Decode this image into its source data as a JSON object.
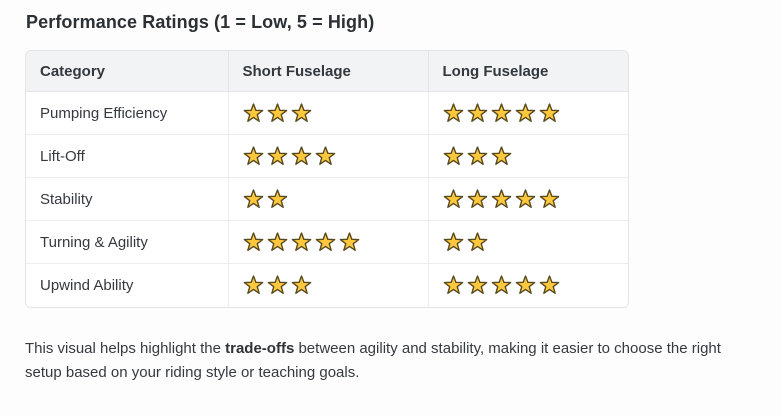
{
  "title": "Performance Ratings (1 = Low, 5 = High)",
  "table": {
    "headers": [
      "Category",
      "Short Fuselage",
      "Long Fuselage"
    ],
    "max_rating": 5,
    "rows": [
      {
        "category": "Pumping Efficiency",
        "short": 3,
        "long": 5
      },
      {
        "category": "Lift-Off",
        "short": 4,
        "long": 3
      },
      {
        "category": "Stability",
        "short": 2,
        "long": 5
      },
      {
        "category": "Turning & Agility",
        "short": 5,
        "long": 2
      },
      {
        "category": "Upwind Ability",
        "short": 3,
        "long": 5
      }
    ]
  },
  "footer": {
    "text_before": "This visual helps highlight the ",
    "bold_text": "trade-offs",
    "text_after": " between agility and stability, making it easier to choose the right setup based on your riding style or teaching goals."
  },
  "icons": {
    "star": "star-icon"
  },
  "colors": {
    "star_fill": "#FFC83D",
    "star_outline": "#574a1e",
    "header_bg": "#f1f3f5",
    "row_bg": "#ffffff",
    "table_border": "#e2e5e8",
    "inner_border": "#ecedef",
    "text": "#343a40",
    "title_text": "#2b3035",
    "page_bg": "#fdfdfd"
  }
}
